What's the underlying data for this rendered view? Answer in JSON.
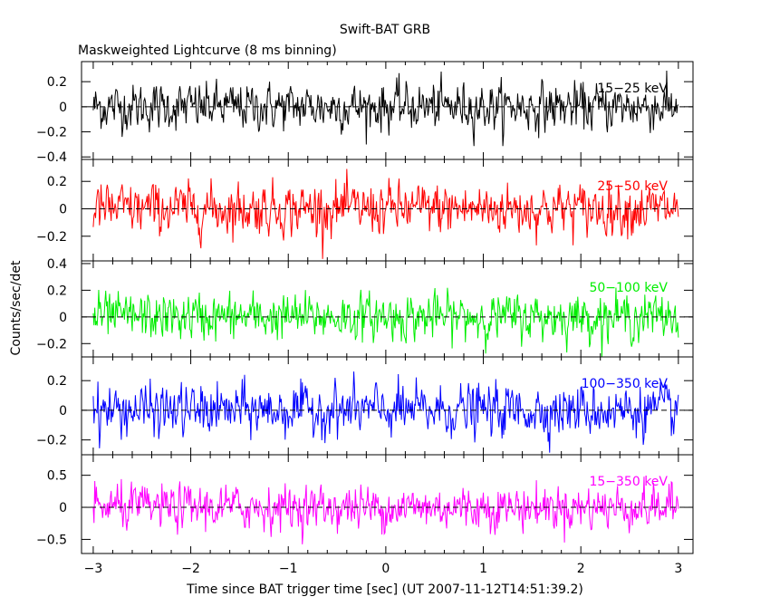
{
  "chart_data": {
    "type": "line",
    "title": "Swift-BAT GRB",
    "subtitle": "Maskweighted Lightcurve (8 ms binning)",
    "xlabel": "Time since BAT trigger time [sec] (UT 2007-11-12T14:51:39.2)",
    "ylabel": "Counts/sec/det",
    "xlim": [
      -3.12,
      3.15
    ],
    "x_ticks": [
      -3,
      -2,
      -1,
      0,
      1,
      2,
      3
    ],
    "x_tick_labels": [
      "−3",
      "−2",
      "−1",
      "0",
      "1",
      "2",
      "3"
    ],
    "x_range": [
      -3.0,
      3.0
    ],
    "bin_seconds": 0.008,
    "grid": false,
    "panels": [
      {
        "name": "15−25 keV",
        "color": "#000000",
        "ylim": [
          -0.42,
          0.36
        ],
        "y_ticks": [
          -0.4,
          -0.2,
          0,
          0.2
        ],
        "y_tick_labels": [
          "−0.4",
          "−0.2",
          "0",
          "0.2"
        ],
        "mean": 0.0,
        "spread": 0.12
      },
      {
        "name": "25−50 keV",
        "color": "#ff0000",
        "ylim": [
          -0.38,
          0.36
        ],
        "y_ticks": [
          -0.2,
          0,
          0.2
        ],
        "y_tick_labels": [
          "−0.2",
          "0",
          "0.2"
        ],
        "mean": 0.0,
        "spread": 0.12
      },
      {
        "name": "50−100 keV",
        "color": "#00ee00",
        "ylim": [
          -0.3,
          0.42
        ],
        "y_ticks": [
          -0.2,
          0,
          0.2,
          0.4
        ],
        "y_tick_labels": [
          "−0.2",
          "0",
          "0.2",
          "0.4"
        ],
        "mean": 0.0,
        "spread": 0.11
      },
      {
        "name": "100−350 keV",
        "color": "#0000ff",
        "ylim": [
          -0.3,
          0.36
        ],
        "y_ticks": [
          -0.2,
          0,
          0.2
        ],
        "y_tick_labels": [
          "−0.2",
          "0",
          "0.2"
        ],
        "mean": 0.0,
        "spread": 0.11
      },
      {
        "name": "15−350 keV",
        "color": "#ff00ff",
        "ylim": [
          -0.72,
          0.82
        ],
        "y_ticks": [
          -0.5,
          0,
          0.5
        ],
        "y_tick_labels": [
          "−0.5",
          "0",
          "0.5"
        ],
        "mean": 0.0,
        "spread": 0.22
      }
    ]
  }
}
